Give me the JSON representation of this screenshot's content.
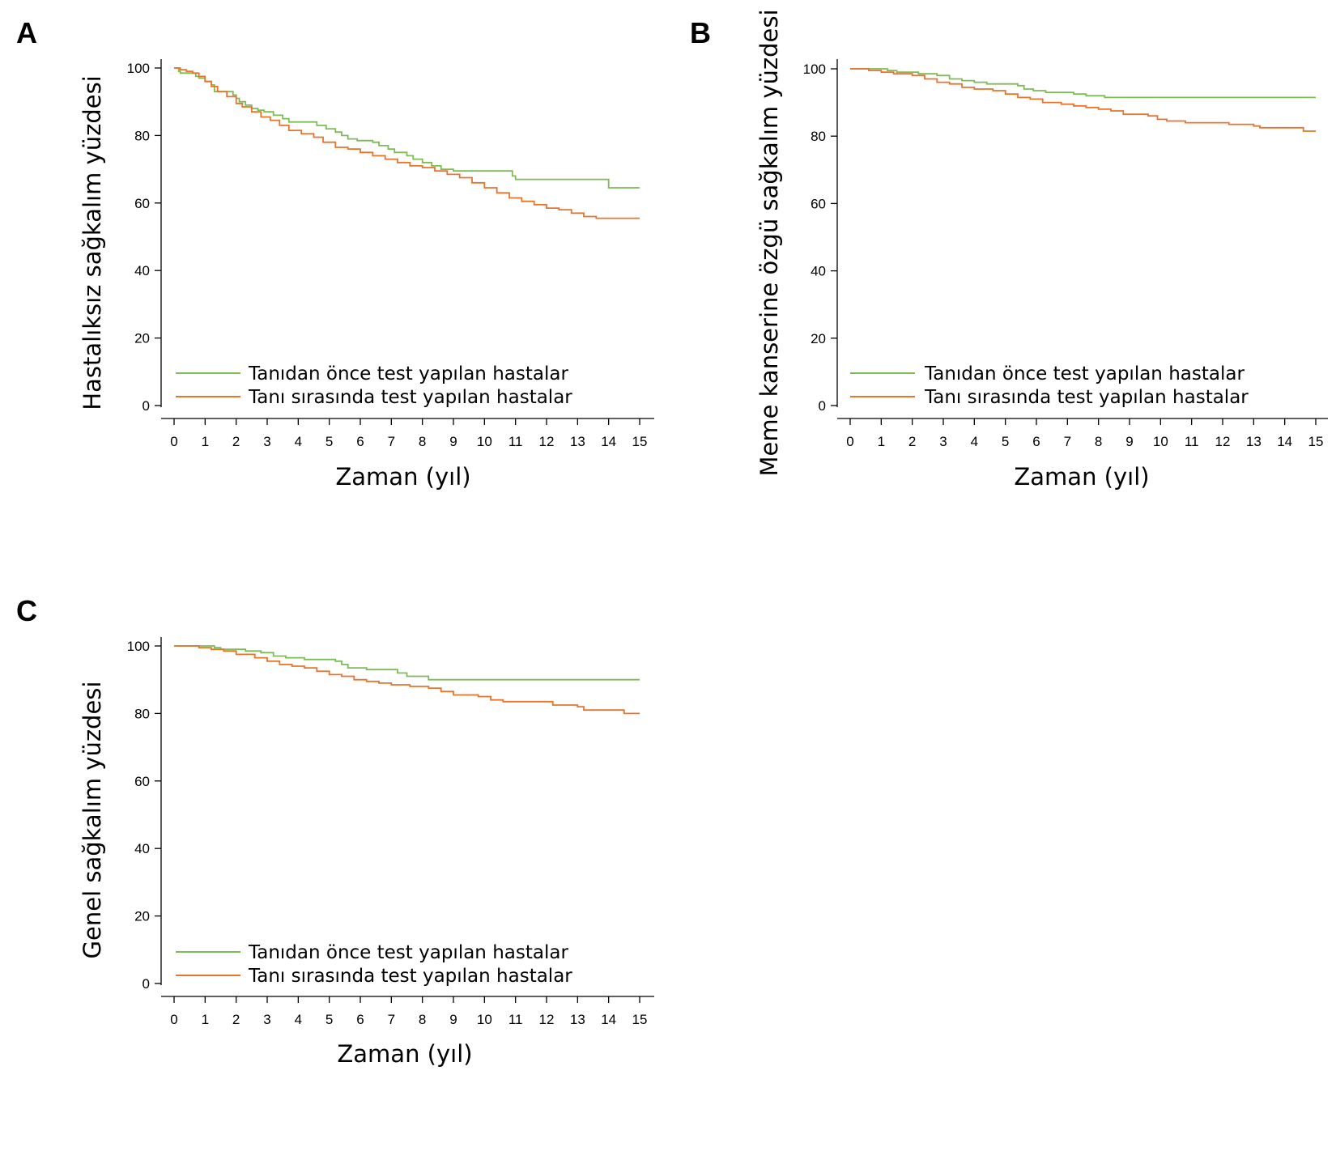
{
  "colors": {
    "green": "#7dbb55",
    "orange": "#e8742c"
  },
  "chart_data": [
    {
      "panel": "A",
      "type": "line",
      "title": "",
      "xlabel": "Zaman (yıl)",
      "ylabel": "Hastalıksız sağkalım yüzdesi",
      "xlim": [
        0,
        15
      ],
      "ylim": [
        0,
        100
      ],
      "xticks": [
        "0",
        "1",
        "2",
        "3",
        "4",
        "5",
        "6",
        "7",
        "8",
        "9",
        "10",
        "11",
        "12",
        "13",
        "14",
        "15"
      ],
      "yticks": [
        "0",
        "20",
        "40",
        "60",
        "80",
        "100"
      ],
      "grid": false,
      "legend_position": "bottom-left",
      "series": [
        {
          "name": "Tanıdan önce test yapılan hastalar",
          "color": "#7dbb55",
          "x": [
            0,
            0.15,
            0.2,
            0.6,
            0.7,
            0.8,
            1.0,
            1.2,
            1.3,
            1.9,
            2.0,
            2.1,
            2.3,
            2.5,
            2.7,
            2.9,
            3.2,
            3.5,
            3.7,
            4.0,
            4.6,
            4.9,
            5.2,
            5.4,
            5.6,
            5.9,
            6.4,
            6.6,
            6.9,
            7.1,
            7.5,
            7.7,
            8.0,
            8.3,
            8.6,
            9.0,
            9.6,
            10.9,
            11.0,
            14.0,
            15.0
          ],
          "y": [
            100,
            99,
            98.5,
            98.5,
            97.5,
            97,
            96,
            95,
            93,
            92,
            91,
            90,
            89,
            88,
            87.5,
            87,
            86,
            85,
            84,
            84,
            83,
            82,
            81,
            80,
            79,
            78.5,
            78,
            77,
            76,
            75,
            74,
            73,
            72,
            71,
            70,
            69.5,
            69.5,
            68,
            67,
            64.5,
            64.5
          ]
        },
        {
          "name": "Tanı sırasında test yapılan hastalar",
          "color": "#e8742c",
          "x": [
            0,
            0.2,
            0.4,
            0.6,
            0.8,
            1.0,
            1.2,
            1.4,
            1.7,
            2.0,
            2.2,
            2.5,
            2.8,
            3.1,
            3.4,
            3.7,
            4.1,
            4.5,
            4.8,
            5.2,
            5.6,
            6.0,
            6.4,
            6.8,
            7.2,
            7.6,
            8.0,
            8.4,
            8.8,
            9.2,
            9.6,
            10.0,
            10.4,
            10.8,
            11.2,
            11.6,
            12.0,
            12.4,
            12.8,
            13.2,
            13.6,
            14.0,
            15.0
          ],
          "y": [
            100,
            99.5,
            99,
            98.5,
            97.5,
            96,
            94.5,
            93,
            91.5,
            89.5,
            88.5,
            87,
            85.5,
            84.5,
            83,
            81.5,
            80.5,
            79.5,
            78,
            76.5,
            76,
            75,
            74,
            73,
            72,
            71,
            70.5,
            69.5,
            68.5,
            67.5,
            66,
            64.5,
            63,
            61.5,
            60.5,
            59.5,
            58.5,
            58,
            57,
            56,
            55.5,
            55.5,
            55.5
          ]
        }
      ]
    },
    {
      "panel": "B",
      "type": "line",
      "title": "",
      "xlabel": "Zaman (yıl)",
      "ylabel": "Meme kanserine özgü sağkalım yüzdesi",
      "xlim": [
        0,
        15
      ],
      "ylim": [
        0,
        100
      ],
      "xticks": [
        "0",
        "1",
        "2",
        "3",
        "4",
        "5",
        "6",
        "7",
        "8",
        "9",
        "10",
        "11",
        "12",
        "13",
        "14",
        "15"
      ],
      "yticks": [
        "0",
        "20",
        "40",
        "60",
        "80",
        "100"
      ],
      "grid": false,
      "legend_position": "bottom-left",
      "series": [
        {
          "name": "Tanıdan önce test yapılan hastalar",
          "color": "#7dbb55",
          "x": [
            0,
            1.0,
            1.2,
            1.5,
            2.2,
            2.8,
            3.2,
            3.6,
            4.0,
            4.4,
            5.2,
            5.4,
            5.6,
            5.9,
            6.3,
            7.2,
            7.6,
            8.2,
            15.0
          ],
          "y": [
            100,
            100,
            99.5,
            99,
            98.5,
            98,
            97,
            96.5,
            96,
            95.5,
            95.5,
            95,
            94,
            93.5,
            93,
            92.5,
            92,
            91.5,
            91.5
          ]
        },
        {
          "name": "Tanı sırasında test yapılan hastalar",
          "color": "#e8742c",
          "x": [
            0,
            0.6,
            1.0,
            1.4,
            2.0,
            2.4,
            2.8,
            3.2,
            3.6,
            4.0,
            4.6,
            5.0,
            5.4,
            5.8,
            6.2,
            6.8,
            7.2,
            7.6,
            8.0,
            8.4,
            8.8,
            9.6,
            9.9,
            10.2,
            10.8,
            11.8,
            12.2,
            13.0,
            13.2,
            14.6,
            15.0
          ],
          "y": [
            100,
            99.5,
            99,
            98.5,
            98,
            97,
            96,
            95.5,
            94.5,
            94,
            93.5,
            92.5,
            91.5,
            91,
            90,
            89.5,
            89,
            88.5,
            88,
            87.5,
            86.5,
            86,
            85,
            84.5,
            84,
            84,
            83.5,
            83,
            82.5,
            81.5,
            81.5
          ]
        }
      ]
    },
    {
      "panel": "C",
      "type": "line",
      "title": "",
      "xlabel": "Zaman (yıl)",
      "ylabel": "Genel sağkalım yüzdesi",
      "xlim": [
        0,
        15
      ],
      "ylim": [
        0,
        100
      ],
      "xticks": [
        "0",
        "1",
        "2",
        "3",
        "4",
        "5",
        "6",
        "7",
        "8",
        "9",
        "10",
        "11",
        "12",
        "13",
        "14",
        "15"
      ],
      "yticks": [
        "0",
        "20",
        "40",
        "60",
        "80",
        "100"
      ],
      "grid": false,
      "legend_position": "bottom-left",
      "series": [
        {
          "name": "Tanıdan önce test yapılan hastalar",
          "color": "#7dbb55",
          "x": [
            0,
            1.1,
            1.3,
            1.5,
            2.3,
            2.8,
            3.2,
            3.6,
            4.2,
            5.2,
            5.4,
            5.6,
            6.2,
            7.2,
            7.5,
            8.2,
            15.0
          ],
          "y": [
            100,
            100,
            99.5,
            99,
            98.5,
            98,
            97,
            96.5,
            96,
            95.5,
            94.5,
            93.5,
            93,
            92,
            91,
            90,
            90
          ]
        },
        {
          "name": "Tanı sırasında test yapılan hastalar",
          "color": "#e8742c",
          "x": [
            0,
            0.8,
            1.2,
            1.6,
            2.0,
            2.6,
            3.0,
            3.4,
            3.8,
            4.2,
            4.6,
            5.0,
            5.4,
            5.8,
            6.2,
            6.6,
            7.0,
            7.6,
            8.2,
            8.6,
            9.0,
            9.8,
            10.2,
            10.6,
            11.8,
            12.2,
            13.0,
            13.2,
            14.0,
            14.5,
            15.0
          ],
          "y": [
            100,
            99.5,
            99,
            98.5,
            97.5,
            96.5,
            95.5,
            94.5,
            94,
            93.5,
            92.5,
            91.5,
            91,
            90,
            89.5,
            89,
            88.5,
            88,
            87.5,
            86.5,
            85.5,
            85,
            84,
            83.5,
            83.5,
            82.5,
            82,
            81,
            81,
            80,
            80
          ]
        }
      ]
    }
  ]
}
